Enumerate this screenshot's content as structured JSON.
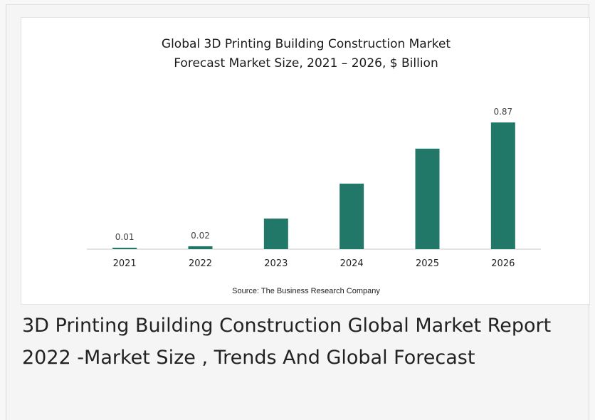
{
  "chart_data": {
    "type": "bar",
    "title_lines": [
      "Global 3D Printing Building Construction Market",
      "Forecast Market Size, 2021 – 2026, $ Billion"
    ],
    "categories": [
      "2021",
      "2022",
      "2023",
      "2024",
      "2025",
      "2026"
    ],
    "values": [
      0.01,
      0.02,
      0.21,
      0.45,
      0.69,
      0.87
    ],
    "data_labels": [
      "0.01",
      "0.02",
      "",
      "",
      "",
      "0.87"
    ],
    "ylim": [
      0,
      0.87
    ],
    "grid": false,
    "legend": "none",
    "bar_color": "#227868",
    "axis_color": "#c8c8c8",
    "source": "Source: The Business Research Company"
  },
  "headline": "3D Printing Building Construction Global Market Report 2022 -Market Size , Trends And Global Forecast"
}
